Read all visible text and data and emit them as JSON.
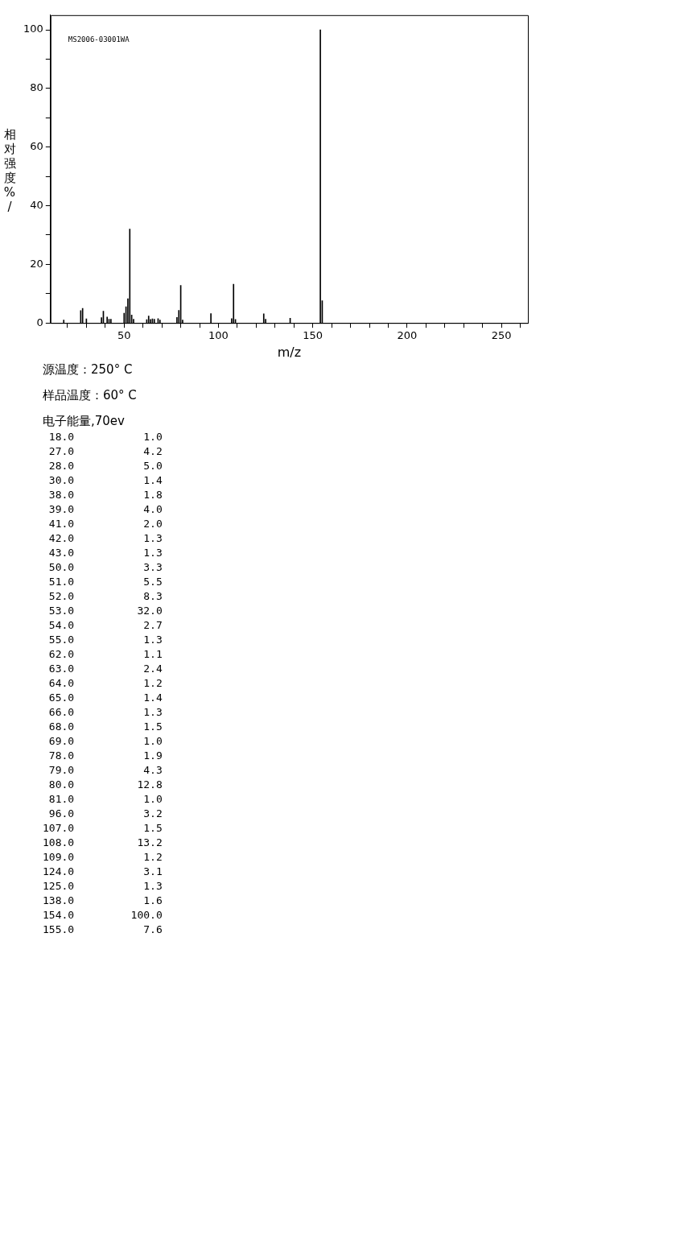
{
  "chart_data": [
    {
      "type": "bar",
      "xlabel": "m/z",
      "ylabel": "相对强度%/",
      "x": [
        18,
        27,
        28,
        30,
        38,
        39,
        41,
        42,
        43,
        50,
        51,
        52,
        53,
        54,
        55,
        62,
        63,
        64,
        65,
        66,
        68,
        69,
        78,
        79,
        80,
        81,
        96,
        107,
        108,
        109,
        124,
        125,
        138,
        154,
        155
      ],
      "values": [
        1.0,
        4.2,
        5.0,
        1.4,
        1.8,
        4.0,
        2.0,
        1.3,
        1.3,
        3.3,
        5.5,
        8.3,
        32.0,
        2.7,
        1.3,
        1.1,
        2.4,
        1.2,
        1.4,
        1.3,
        1.5,
        1.0,
        1.9,
        4.3,
        12.8,
        1.0,
        3.2,
        1.5,
        13.2,
        1.2,
        3.1,
        1.3,
        1.6,
        100.0,
        7.6
      ],
      "color": "#000000",
      "xlim": [
        11,
        264
      ],
      "xticks": [
        {
          "value": 20,
          "label": null
        },
        {
          "value": 30,
          "label": null
        },
        {
          "value": 40,
          "label": null
        },
        50,
        {
          "value": 60,
          "label": null
        },
        {
          "value": 70,
          "label": null
        },
        {
          "value": 80,
          "label": null
        },
        {
          "value": 90,
          "label": null
        },
        100,
        {
          "value": 110,
          "label": null
        },
        {
          "value": 120,
          "label": null
        },
        {
          "value": 130,
          "label": null
        },
        {
          "value": 140,
          "label": null
        },
        150,
        {
          "value": 160,
          "label": null
        },
        {
          "value": 170,
          "label": null
        },
        {
          "value": 180,
          "label": null
        },
        {
          "value": 190,
          "label": null
        },
        200,
        {
          "value": 210,
          "label": null
        },
        {
          "value": 220,
          "label": null
        },
        {
          "value": 230,
          "label": null
        },
        {
          "value": 240,
          "label": null
        },
        250,
        {
          "value": 260,
          "label": null
        }
      ],
      "ylim": [
        0,
        105
      ],
      "yticks": [
        0,
        {
          "value": 10,
          "label": null
        },
        20,
        {
          "value": 30,
          "label": null
        },
        40,
        {
          "value": 50,
          "label": null
        },
        60,
        {
          "value": 70,
          "label": null
        },
        80,
        {
          "value": 90,
          "label": null
        },
        100
      ],
      "grid": false,
      "legend": false,
      "annotations": [
        "MS2006-03001WA",
        "源温度：250° C",
        "样品温度：60° C",
        "电子能量,70ev"
      ]
    },
    {
      "type": "other",
      "categories": [
        "18.0",
        "27.0",
        "28.0",
        "30.0",
        "38.0",
        "39.0",
        "41.0",
        "42.0",
        "43.0",
        "50.0",
        "51.0",
        "52.0",
        "53.0",
        "54.0",
        "55.0",
        "62.0",
        "63.0",
        "64.0",
        "65.0",
        "66.0",
        "68.0",
        "69.0",
        "78.0",
        "79.0",
        "80.0",
        "81.0",
        "96.0",
        "107.0",
        "108.0",
        "109.0",
        "124.0",
        "125.0",
        "138.0",
        "154.0",
        "155.0"
      ],
      "value_labels": [
        "1.0",
        "4.2",
        "5.0",
        "1.4",
        "1.8",
        "4.0",
        "2.0",
        "1.3",
        "1.3",
        "3.3",
        "5.5",
        "8.3",
        "32.0",
        "2.7",
        "1.3",
        "1.1",
        "2.4",
        "1.2",
        "1.4",
        "1.3",
        "1.5",
        "1.0",
        "1.9",
        "4.3",
        "12.8",
        "1.0",
        "3.2",
        "1.5",
        "13.2",
        "1.2",
        "3.1",
        "1.3",
        "1.6",
        "100.0",
        "7.6"
      ]
    }
  ]
}
